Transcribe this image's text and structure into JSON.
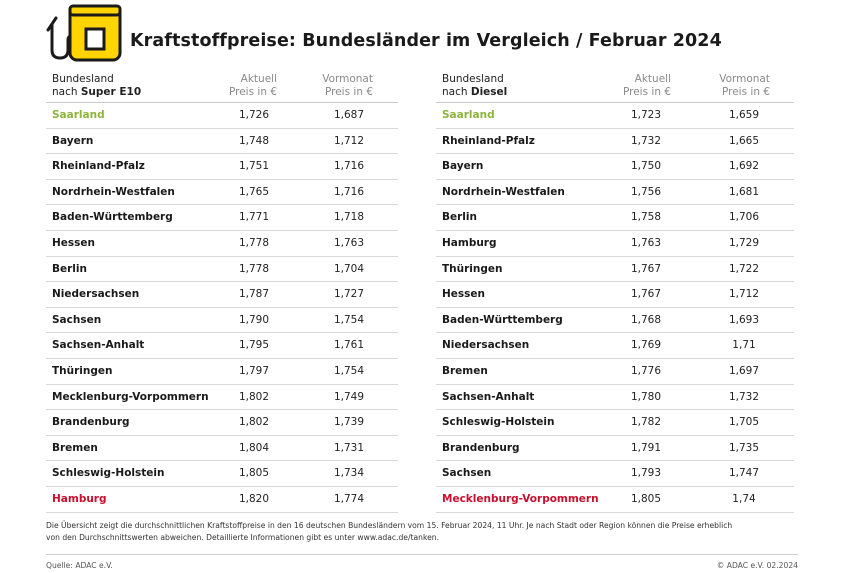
{
  "header": {
    "title": "Kraftstoffpreise: Bundesländer im Vergleich / Februar 2024"
  },
  "colors": {
    "accent": "#ffd400",
    "best": "#8cb43c",
    "worst": "#c8102e"
  },
  "logo_icon": "fuel-pump-icon",
  "left": {
    "col_name_line1": "Bundesland",
    "col_name_line2_prefix": "nach ",
    "col_name_line2_bold": "Super E10",
    "col_current_line1": "Aktuell",
    "col_current_line2": "Preis in €",
    "col_prev_line1": "Vormonat",
    "col_prev_line2": "Preis in €",
    "rows": [
      {
        "name": "Saarland",
        "current": "1,726",
        "prev": "1,687",
        "status": "best"
      },
      {
        "name": "Bayern",
        "current": "1,748",
        "prev": "1,712",
        "status": ""
      },
      {
        "name": "Rheinland-Pfalz",
        "current": "1,751",
        "prev": "1,716",
        "status": ""
      },
      {
        "name": "Nordrhein-Westfalen",
        "current": "1,765",
        "prev": "1,716",
        "status": ""
      },
      {
        "name": "Baden-Württemberg",
        "current": "1,771",
        "prev": "1,718",
        "status": ""
      },
      {
        "name": "Hessen",
        "current": "1,778",
        "prev": "1,763",
        "status": ""
      },
      {
        "name": "Berlin",
        "current": "1,778",
        "prev": "1,704",
        "status": ""
      },
      {
        "name": "Niedersachsen",
        "current": "1,787",
        "prev": "1,727",
        "status": ""
      },
      {
        "name": "Sachsen",
        "current": "1,790",
        "prev": "1,754",
        "status": ""
      },
      {
        "name": "Sachsen-Anhalt",
        "current": "1,795",
        "prev": "1,761",
        "status": ""
      },
      {
        "name": "Thüringen",
        "current": "1,797",
        "prev": "1,754",
        "status": ""
      },
      {
        "name": "Mecklenburg-Vorpommern",
        "current": "1,802",
        "prev": "1,749",
        "status": ""
      },
      {
        "name": "Brandenburg",
        "current": "1,802",
        "prev": "1,739",
        "status": ""
      },
      {
        "name": "Bremen",
        "current": "1,804",
        "prev": "1,731",
        "status": ""
      },
      {
        "name": "Schleswig-Holstein",
        "current": "1,805",
        "prev": "1,734",
        "status": ""
      },
      {
        "name": "Hamburg",
        "current": "1,820",
        "prev": "1,774",
        "status": "worst"
      }
    ]
  },
  "right": {
    "col_name_line1": "Bundesland",
    "col_name_line2_prefix": "nach ",
    "col_name_line2_bold": "Diesel",
    "col_current_line1": "Aktuell",
    "col_current_line2": "Preis in €",
    "col_prev_line1": "Vormonat",
    "col_prev_line2": "Preis in €",
    "rows": [
      {
        "name": "Saarland",
        "current": "1,723",
        "prev": "1,659",
        "status": "best"
      },
      {
        "name": "Rheinland-Pfalz",
        "current": "1,732",
        "prev": "1,665",
        "status": ""
      },
      {
        "name": "Bayern",
        "current": "1,750",
        "prev": "1,692",
        "status": ""
      },
      {
        "name": "Nordrhein-Westfalen",
        "current": "1,756",
        "prev": "1,681",
        "status": ""
      },
      {
        "name": "Berlin",
        "current": "1,758",
        "prev": "1,706",
        "status": ""
      },
      {
        "name": "Hamburg",
        "current": "1,763",
        "prev": "1,729",
        "status": ""
      },
      {
        "name": "Thüringen",
        "current": "1,767",
        "prev": "1,722",
        "status": ""
      },
      {
        "name": "Hessen",
        "current": "1,767",
        "prev": "1,712",
        "status": ""
      },
      {
        "name": "Baden-Württemberg",
        "current": "1,768",
        "prev": "1,693",
        "status": ""
      },
      {
        "name": "Niedersachsen",
        "current": "1,769",
        "prev": "1,71",
        "status": ""
      },
      {
        "name": "Bremen",
        "current": "1,776",
        "prev": "1,697",
        "status": ""
      },
      {
        "name": "Sachsen-Anhalt",
        "current": "1,780",
        "prev": "1,732",
        "status": ""
      },
      {
        "name": "Schleswig-Holstein",
        "current": "1,782",
        "prev": "1,705",
        "status": ""
      },
      {
        "name": "Brandenburg",
        "current": "1,791",
        "prev": "1,735",
        "status": ""
      },
      {
        "name": "Sachsen",
        "current": "1,793",
        "prev": "1,747",
        "status": ""
      },
      {
        "name": "Mecklenburg-Vorpommern",
        "current": "1,805",
        "prev": "1,74",
        "status": "worst"
      }
    ]
  },
  "footer": {
    "note": "Die Übersicht zeigt die durchschnittlichen Kraftstoffpreise in den 16 deutschen Bundesländern vom 15. Februar 2024, 11 Uhr. Je nach Stadt oder Region können die Preise erheblich von den Durchschnittswerten abweichen. Detaillierte Informationen gibt es unter www.adac.de/tanken.",
    "source": "Quelle: ADAC e.V.",
    "copyright": "© ADAC e.V. 02.2024"
  }
}
